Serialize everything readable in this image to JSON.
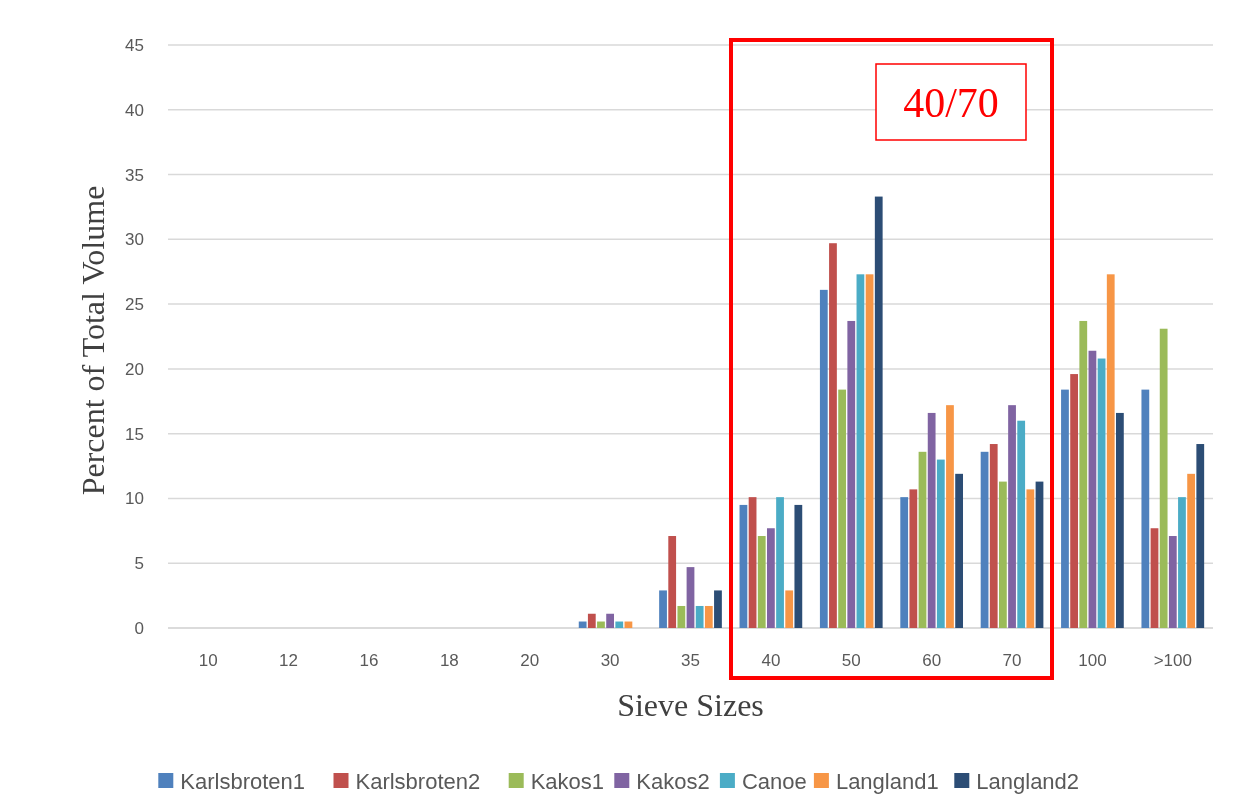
{
  "chart_data": {
    "type": "bar",
    "xlabel": "Sieve Sizes",
    "ylabel": "Percent of Total Volume",
    "categories": [
      "10",
      "12",
      "16",
      "18",
      "20",
      "30",
      "35",
      "40",
      "50",
      "60",
      "70",
      "100",
      ">100"
    ],
    "series": [
      {
        "name": "Karlsbroten1",
        "color": "#4f81bd",
        "values": [
          0,
          0,
          0,
          0,
          0,
          0.5,
          2.9,
          9.5,
          26.1,
          10.1,
          13.6,
          18.4,
          18.4
        ]
      },
      {
        "name": "Karlsbroten2",
        "color": "#c0504d",
        "values": [
          0,
          0,
          0,
          0,
          0,
          1.1,
          7.1,
          10.1,
          29.7,
          10.7,
          14.2,
          19.6,
          7.7
        ]
      },
      {
        "name": "Kakos1",
        "color": "#9bbb59",
        "values": [
          0,
          0,
          0,
          0,
          0,
          0.5,
          1.7,
          7.1,
          18.4,
          13.6,
          11.3,
          23.7,
          23.1
        ]
      },
      {
        "name": "Kakos2",
        "color": "#8064a2",
        "values": [
          0,
          0,
          0,
          0,
          0,
          1.1,
          4.7,
          7.7,
          23.7,
          16.6,
          17.2,
          21.4,
          7.1
        ]
      },
      {
        "name": "Canoe",
        "color": "#4bacc6",
        "values": [
          0,
          0,
          0,
          0,
          0,
          0.5,
          1.7,
          10.1,
          27.3,
          13.0,
          16.0,
          20.8,
          10.1
        ]
      },
      {
        "name": "Langland1",
        "color": "#f79646",
        "values": [
          0,
          0,
          0,
          0,
          0,
          0.5,
          1.7,
          2.9,
          27.3,
          17.2,
          10.7,
          27.3,
          11.9
        ]
      },
      {
        "name": "Langland2",
        "color": "#2c4d75",
        "values": [
          0,
          0,
          0,
          0,
          0,
          0,
          2.9,
          9.5,
          33.3,
          11.9,
          11.3,
          16.6,
          14.2
        ]
      }
    ],
    "ylim": [
      0,
      45
    ],
    "yticks": [
      0,
      5,
      10,
      15,
      20,
      25,
      30,
      35,
      40,
      45
    ],
    "grid": "y",
    "legend": "bottom",
    "annotations": [
      "40/70"
    ]
  }
}
